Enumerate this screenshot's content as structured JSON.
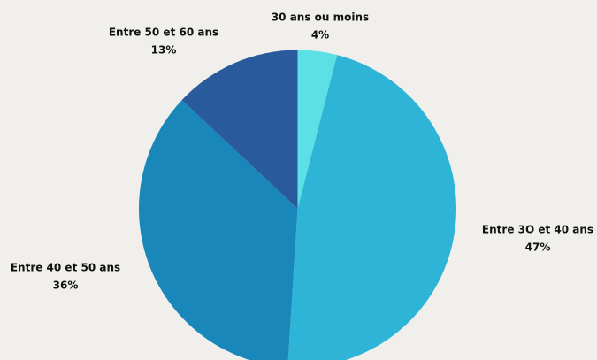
{
  "chart_data": {
    "type": "pie",
    "categories": [
      "30 ans ou moins",
      "Entre 3O et 40 ans",
      "Entre 40 et 50 ans",
      "Entre 50 et 60 ans"
    ],
    "values": [
      4,
      47,
      36,
      13
    ],
    "value_labels": [
      "4%",
      "47%",
      "36%",
      "13%"
    ],
    "colors": [
      "#5ce0e6",
      "#2eb4d6",
      "#1a87bb",
      "#285a9c"
    ]
  }
}
